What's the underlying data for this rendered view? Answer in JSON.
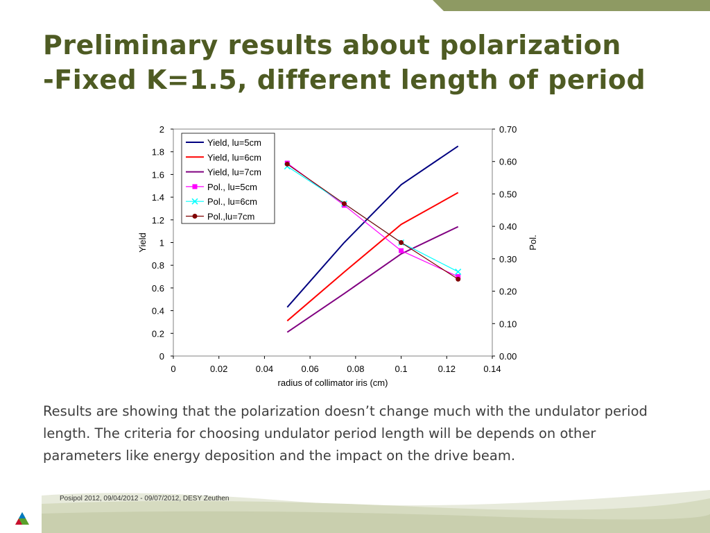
{
  "slide": {
    "title_line1": "Preliminary results about polarization",
    "title_line2": "-Fixed K=1.5, different length of period",
    "body": "Results are showing that the polarization doesn’t change much with the undulator period length.  The criteria for choosing undulator period length will be depends on other parameters like energy deposition and the impact on the drive beam.",
    "footer": "Posipol 2012, 09/04/2012 - 09/07/2012, DESY Zeuthen"
  },
  "colors": {
    "title": "#4e5b23",
    "accent_bar": "#8e9a63",
    "footer_band": "#c9cfae"
  },
  "chart_data": {
    "type": "line",
    "xlabel": "radius of collimator iris (cm)",
    "ylabel": "Yield",
    "y2label": "Pol.",
    "xlim": [
      0,
      0.14
    ],
    "ylim": [
      0,
      2
    ],
    "y2lim": [
      0,
      0.7
    ],
    "x_ticks": [
      "0",
      "0.02",
      "0.04",
      "0.06",
      "0.08",
      "0.1",
      "0.12",
      "0.14"
    ],
    "y_ticks": [
      "0",
      "0.2",
      "0.4",
      "0.6",
      "0.8",
      "1",
      "1.2",
      "1.4",
      "1.6",
      "1.8",
      "2"
    ],
    "y2_ticks": [
      "0.00",
      "0.10",
      "0.20",
      "0.30",
      "0.40",
      "0.50",
      "0.60",
      "0.70"
    ],
    "legend_position": "top-left",
    "grid": false,
    "x": [
      0.05,
      0.075,
      0.1,
      0.125
    ],
    "series": [
      {
        "name": "Yield, lu=5cm",
        "axis": "left",
        "color": "#000080",
        "marker": "none",
        "values": [
          0.43,
          1.0,
          1.51,
          1.85
        ]
      },
      {
        "name": "Yield, lu=6cm",
        "axis": "left",
        "color": "#ff0000",
        "marker": "none",
        "values": [
          0.31,
          0.74,
          1.16,
          1.44
        ]
      },
      {
        "name": "Yield, lu=7cm",
        "axis": "left",
        "color": "#800080",
        "marker": "none",
        "values": [
          0.21,
          0.55,
          0.9,
          1.14
        ]
      },
      {
        "name": "Pol., lu=5cm",
        "axis": "right",
        "color": "#ff00ff",
        "marker": "square",
        "values": [
          0.595,
          0.465,
          0.325,
          0.245
        ]
      },
      {
        "name": "Pol., lu=6cm",
        "axis": "right",
        "color": "#00ffff",
        "marker": "x",
        "values": [
          0.585,
          0.47,
          0.35,
          0.26
        ]
      },
      {
        "name": "Pol.,lu=7cm",
        "axis": "right",
        "color": "#800000",
        "marker": "circle",
        "values": [
          0.592,
          0.47,
          0.35,
          0.237
        ]
      }
    ]
  }
}
